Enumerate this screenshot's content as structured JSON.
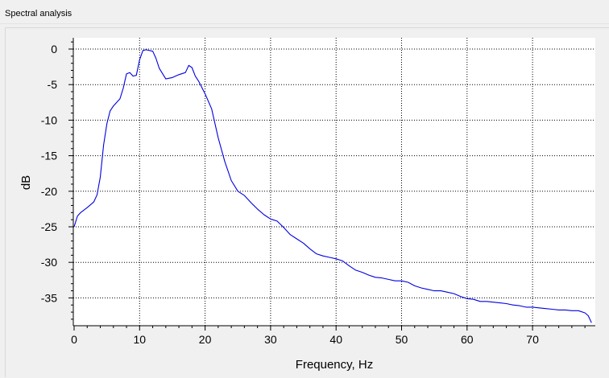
{
  "window": {
    "title": "Spectral analysis"
  },
  "chart_data": {
    "type": "line",
    "xlabel": "Frequency, Hz",
    "ylabel": "dB",
    "xlim": [
      0,
      80
    ],
    "ylim": [
      -39,
      1.5
    ],
    "xticks": [
      0,
      10,
      20,
      30,
      40,
      50,
      60,
      70
    ],
    "yticks": [
      0,
      -5,
      -10,
      -15,
      -20,
      -25,
      -30,
      -35
    ],
    "grid": true,
    "grid_style": "dotted",
    "line_color": "#0000e0",
    "series": [
      {
        "x": [
          0,
          0.5,
          1,
          2,
          3,
          3.5,
          4,
          4.5,
          5,
          5.5,
          6,
          7,
          7.5,
          8,
          8.5,
          9,
          9.5,
          10,
          10.5,
          11,
          12,
          12.5,
          13,
          14,
          15,
          16,
          17,
          17.5,
          18,
          18.5,
          19,
          20,
          21,
          22,
          23,
          24,
          25,
          26,
          27,
          28,
          29,
          30,
          31,
          32,
          33,
          34,
          35,
          36,
          37,
          38,
          39,
          40,
          41,
          42,
          43,
          44,
          45,
          46,
          47,
          48,
          49,
          50,
          51,
          52,
          53,
          54,
          55,
          56,
          57,
          58,
          59,
          60,
          61,
          62,
          63,
          64,
          65,
          66,
          67,
          68,
          69,
          70,
          71,
          72,
          73,
          74,
          75,
          76,
          77,
          78,
          78.5,
          79
        ],
        "y": [
          -25,
          -23.5,
          -23,
          -22.3,
          -21.5,
          -20.5,
          -18,
          -13.5,
          -10.5,
          -8.7,
          -8,
          -7,
          -5.5,
          -3.5,
          -3.3,
          -3.8,
          -3.7,
          -1.5,
          -0.2,
          -0.1,
          -0.3,
          -1.3,
          -2.7,
          -4.2,
          -4,
          -3.6,
          -3.3,
          -2.3,
          -2.6,
          -3.8,
          -4.5,
          -6.3,
          -8.4,
          -12.5,
          -15.8,
          -18.5,
          -20,
          -20.6,
          -21.6,
          -22.5,
          -23.3,
          -23.9,
          -24.2,
          -25.1,
          -26.1,
          -26.7,
          -27.3,
          -28.1,
          -28.8,
          -29.1,
          -29.3,
          -29.5,
          -29.8,
          -30.5,
          -31.1,
          -31.4,
          -31.8,
          -32.1,
          -32.2,
          -32.4,
          -32.6,
          -32.6,
          -32.8,
          -33.3,
          -33.6,
          -33.8,
          -34.0,
          -34.0,
          -34.2,
          -34.4,
          -34.8,
          -35.1,
          -35.2,
          -35.5,
          -35.5,
          -35.6,
          -35.7,
          -35.8,
          -36.0,
          -36.1,
          -36.3,
          -36.3,
          -36.4,
          -36.5,
          -36.6,
          -36.7,
          -36.7,
          -36.8,
          -36.8,
          -37.1,
          -37.5,
          -38.5
        ]
      }
    ]
  }
}
